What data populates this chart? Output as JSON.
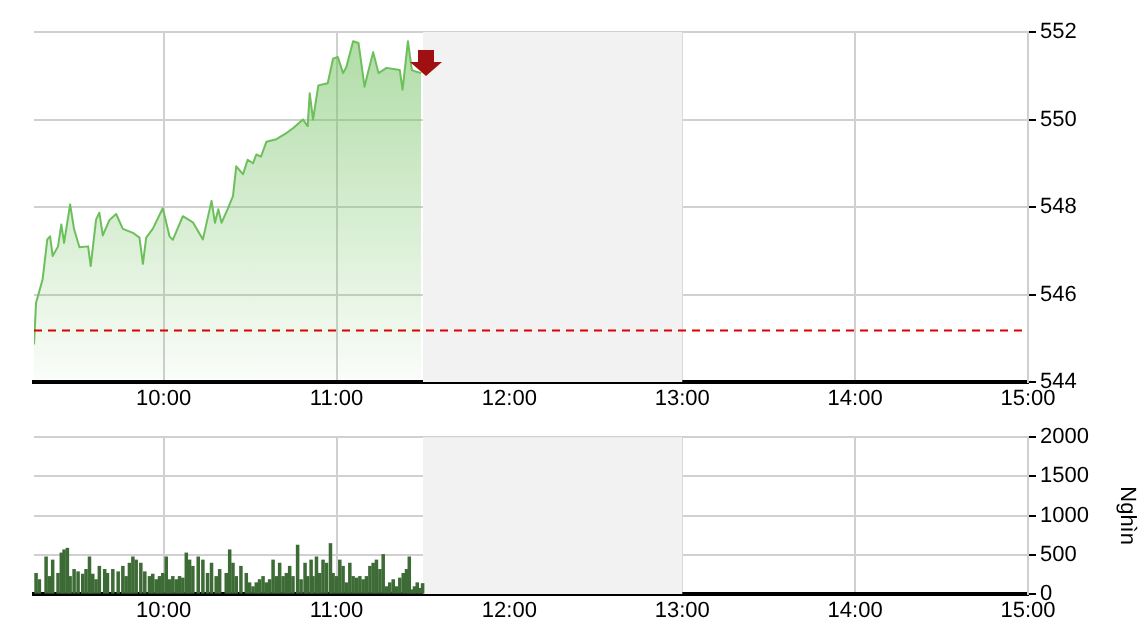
{
  "chart_data": [
    {
      "type": "area",
      "color": "#6cbf5a",
      "grid": true,
      "legend": false,
      "marker": "none",
      "line_style": "solid",
      "x": [
        9.25,
        9.262,
        9.3,
        9.327,
        9.343,
        9.358,
        9.389,
        9.408,
        9.424,
        9.459,
        9.482,
        9.513,
        9.563,
        9.578,
        9.609,
        9.628,
        9.648,
        9.686,
        9.725,
        9.764,
        9.822,
        9.86,
        9.88,
        9.899,
        9.937,
        9.995,
        10.034,
        10.053,
        10.111,
        10.169,
        10.227,
        10.277,
        10.297,
        10.316,
        10.335,
        10.37,
        10.401,
        10.42,
        10.459,
        10.486,
        10.517,
        10.536,
        10.563,
        10.594,
        10.652,
        10.71,
        10.748,
        10.806,
        10.833,
        10.845,
        10.864,
        10.895,
        10.949,
        10.98,
        11.007,
        11.038,
        11.057,
        11.096,
        11.127,
        11.162,
        11.181,
        11.212,
        11.243,
        11.289,
        11.366,
        11.382,
        11.413,
        11.436,
        11.463,
        11.49
      ],
      "values": [
        544.86,
        545.81,
        546.35,
        547.26,
        547.33,
        546.88,
        547.1,
        547.6,
        547.18,
        548.06,
        547.49,
        547.08,
        547.1,
        546.65,
        547.71,
        547.87,
        547.35,
        547.7,
        547.84,
        547.5,
        547.41,
        547.3,
        546.7,
        547.3,
        547.5,
        547.97,
        547.33,
        547.25,
        547.79,
        547.65,
        547.26,
        548.14,
        547.64,
        547.95,
        547.64,
        547.95,
        548.25,
        548.93,
        548.75,
        549.08,
        549.0,
        549.2,
        549.15,
        549.49,
        549.55,
        549.69,
        549.8,
        550.0,
        549.85,
        550.6,
        550.0,
        550.78,
        550.83,
        551.39,
        551.43,
        551.06,
        551.2,
        551.79,
        551.75,
        550.75,
        551.06,
        551.54,
        551.06,
        551.18,
        551.13,
        550.68,
        551.79,
        551.13,
        551.09,
        551.06
      ],
      "xlim": [
        9.25,
        15
      ],
      "xticks": [
        {
          "value": 10,
          "label": "10:00"
        },
        {
          "value": 11,
          "label": "11:00"
        },
        {
          "value": 12,
          "label": "12:00"
        },
        {
          "value": 13,
          "label": "13:00"
        },
        {
          "value": 14,
          "label": "14:00"
        },
        {
          "value": 15,
          "label": "15:00"
        }
      ],
      "ylim": [
        544,
        552
      ],
      "yticks": [
        544,
        546,
        548,
        550,
        552
      ],
      "ref_lines": [
        {
          "axis": "y",
          "value": 545.2,
          "color": "#dd0000",
          "line_style": "dashed"
        }
      ],
      "bands": [
        {
          "axis": "x",
          "from": 11.5,
          "to": 13,
          "color": "#f2f2f2"
        }
      ]
    },
    {
      "type": "bar",
      "color": "#3d6b35",
      "grid": true,
      "legend": false,
      "ylabel": "Nghìn",
      "x": [
        9.262,
        9.281,
        9.32,
        9.339,
        9.358,
        9.389,
        9.408,
        9.424,
        9.443,
        9.459,
        9.482,
        9.505,
        9.532,
        9.551,
        9.571,
        9.59,
        9.609,
        9.628,
        9.659,
        9.675,
        9.706,
        9.737,
        9.764,
        9.783,
        9.802,
        9.822,
        9.841,
        9.868,
        9.891,
        9.918,
        9.937,
        9.957,
        9.976,
        9.995,
        10.015,
        10.034,
        10.053,
        10.073,
        10.092,
        10.111,
        10.131,
        10.15,
        10.169,
        10.2,
        10.227,
        10.254,
        10.277,
        10.304,
        10.324,
        10.362,
        10.382,
        10.401,
        10.42,
        10.447,
        10.478,
        10.497,
        10.517,
        10.536,
        10.555,
        10.575,
        10.594,
        10.613,
        10.633,
        10.652,
        10.671,
        10.691,
        10.71,
        10.729,
        10.748,
        10.775,
        10.795,
        10.818,
        10.833,
        10.853,
        10.864,
        10.884,
        10.903,
        10.922,
        10.942,
        10.965,
        10.98,
        10.999,
        11.019,
        11.038,
        11.057,
        11.077,
        11.096,
        11.115,
        11.135,
        11.154,
        11.173,
        11.193,
        11.212,
        11.231,
        11.251,
        11.27,
        11.289,
        11.308,
        11.328,
        11.347,
        11.366,
        11.386,
        11.405,
        11.421,
        11.436,
        11.451,
        11.467,
        11.482,
        11.498
      ],
      "values": [
        260,
        180,
        470,
        220,
        430,
        260,
        520,
        560,
        580,
        220,
        310,
        280,
        250,
        310,
        470,
        250,
        180,
        350,
        310,
        260,
        310,
        280,
        350,
        220,
        390,
        470,
        430,
        390,
        280,
        220,
        250,
        180,
        220,
        260,
        470,
        180,
        220,
        180,
        220,
        200,
        520,
        430,
        350,
        470,
        430,
        260,
        390,
        220,
        310,
        260,
        560,
        390,
        220,
        350,
        260,
        140,
        90,
        140,
        180,
        220,
        140,
        180,
        430,
        220,
        390,
        220,
        260,
        350,
        220,
        620,
        180,
        390,
        220,
        430,
        220,
        470,
        260,
        430,
        390,
        640,
        260,
        220,
        430,
        350,
        140,
        390,
        220,
        200,
        220,
        180,
        220,
        350,
        390,
        430,
        310,
        500,
        90,
        140,
        180,
        90,
        200,
        260,
        310,
        470,
        50,
        90,
        140,
        70,
        130
      ],
      "xlim": [
        9.25,
        15
      ],
      "xticks": [
        {
          "value": 10,
          "label": "10:00"
        },
        {
          "value": 11,
          "label": "11:00"
        },
        {
          "value": 12,
          "label": "12:00"
        },
        {
          "value": 13,
          "label": "13:00"
        },
        {
          "value": 14,
          "label": "14:00"
        },
        {
          "value": 15,
          "label": "15:00"
        }
      ],
      "ylim": [
        0,
        2000
      ],
      "yticks": [
        0,
        500,
        1000,
        1500,
        2000
      ],
      "bands": [
        {
          "axis": "x",
          "from": 11.5,
          "to": 13,
          "color": "#f2f2f2"
        }
      ]
    }
  ]
}
